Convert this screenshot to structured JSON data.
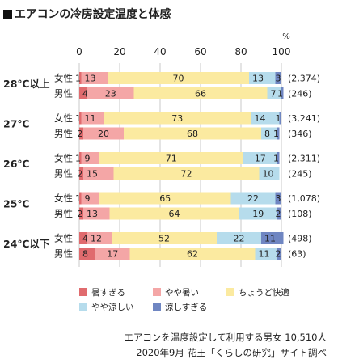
{
  "title": "エアコンの冷房設定温度と体感",
  "chart_data": {
    "type": "bar",
    "orientation": "horizontal",
    "stacked": true,
    "x_unit": "%",
    "xlim": [
      0,
      100
    ],
    "x_ticks": [
      0,
      20,
      40,
      60,
      80,
      100
    ],
    "grid": true,
    "legend_position": "bottom",
    "series": [
      {
        "name": "暑すぎる",
        "color": "#e06b6e"
      },
      {
        "name": "やや暑い",
        "color": "#f4a6a6"
      },
      {
        "name": "ちょうど快適",
        "color": "#fbeaa0"
      },
      {
        "name": "やや涼しい",
        "color": "#b6dcec"
      },
      {
        "name": "涼しすぎる",
        "color": "#6f86c2"
      }
    ],
    "groups": [
      {
        "label": "28℃以上",
        "rows": [
          {
            "label": "女性",
            "values": [
              1,
              13,
              70,
              13,
              3
            ],
            "n": "(2,374)"
          },
          {
            "label": "男性",
            "values": [
              4,
              23,
              66,
              7,
              1
            ],
            "n": "(246)"
          }
        ]
      },
      {
        "label": "27℃",
        "rows": [
          {
            "label": "女性",
            "values": [
              1,
              11,
              73,
              14,
              1
            ],
            "n": "(3,241)"
          },
          {
            "label": "男性",
            "values": [
              2,
              20,
              68,
              8,
              1
            ],
            "n": "(346)"
          }
        ]
      },
      {
        "label": "26℃",
        "rows": [
          {
            "label": "女性",
            "values": [
              1,
              9,
              71,
              17,
              1
            ],
            "n": "(2,311)"
          },
          {
            "label": "男性",
            "values": [
              2,
              15,
              72,
              10,
              0
            ],
            "n": "(245)"
          }
        ]
      },
      {
        "label": "25℃",
        "rows": [
          {
            "label": "女性",
            "values": [
              1,
              9,
              65,
              22,
              3
            ],
            "n": "(1,078)"
          },
          {
            "label": "男性",
            "values": [
              2,
              13,
              64,
              19,
              2
            ],
            "n": "(108)"
          }
        ]
      },
      {
        "label": "24℃以下",
        "rows": [
          {
            "label": "女性",
            "values": [
              4,
              12,
              52,
              22,
              11
            ],
            "n": "(498)"
          },
          {
            "label": "男性",
            "values": [
              8,
              17,
              62,
              11,
              2
            ],
            "n": "(63)"
          }
        ]
      }
    ]
  },
  "notes": [
    "エアコンを温度設定して利用する男女 10,510人",
    "2020年9月 花王「くらしの研究」サイト調べ"
  ]
}
